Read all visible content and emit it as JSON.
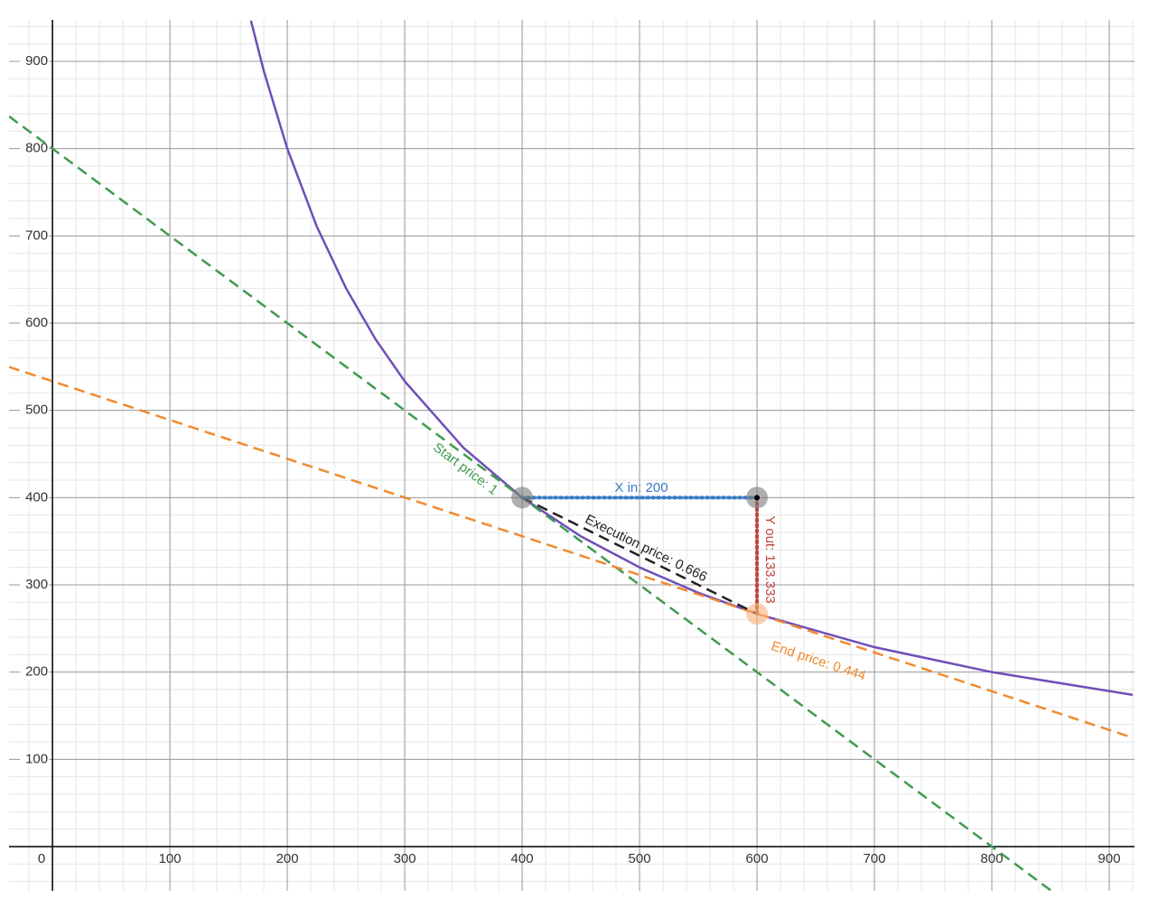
{
  "chart_data": {
    "type": "line",
    "xlim": [
      -37,
      921.5
    ],
    "ylim": [
      -50.7,
      947.6
    ],
    "xticks": [
      0,
      100,
      200,
      300,
      400,
      500,
      600,
      700,
      800,
      900
    ],
    "yticks": [
      100,
      200,
      300,
      400,
      500,
      600,
      700,
      800,
      900
    ],
    "grid": true,
    "series": [
      {
        "color": "#6f4fb8",
        "style": "solid",
        "x": [
          169,
          180,
          200,
          225,
          250,
          275,
          300,
          350,
          400,
          450,
          500,
          550,
          600,
          700,
          800,
          920
        ],
        "values": [
          946.7,
          888.9,
          800,
          711.1,
          640,
          581.8,
          533.3,
          457.1,
          400,
          355.6,
          320,
          290.9,
          266.7,
          228.6,
          200,
          173.9
        ]
      },
      {
        "color": "#3f9a4f",
        "style": "dashed",
        "x": [
          -37,
          853
        ],
        "values": [
          837,
          -53
        ]
      },
      {
        "color": "#f08a30",
        "style": "dashed",
        "x": [
          -37,
          920
        ],
        "values": [
          549.8,
          124.8
        ]
      },
      {
        "color": "#222222",
        "style": "dashed",
        "x": [
          400,
          600
        ],
        "values": [
          400,
          266.7
        ]
      },
      {
        "color": "#3b7cc4",
        "style": "dotted",
        "x": [
          400,
          600
        ],
        "values": [
          400,
          400
        ]
      },
      {
        "color": "#c0443f",
        "style": "dotted",
        "x": [
          600,
          600
        ],
        "values": [
          400,
          266.7
        ]
      }
    ],
    "points": [
      {
        "x": 400,
        "y": 400,
        "color": "#7a7a7a"
      },
      {
        "x": 600,
        "y": 400,
        "color": "#7a7a7a"
      },
      {
        "x": 600,
        "y": 266.7,
        "color": "#f7b27a"
      }
    ],
    "annotations": [
      "Start price: 1",
      "X in: 200",
      "Execution price: 0.666",
      "Y out: 133.333",
      "End price: 0.444"
    ]
  }
}
